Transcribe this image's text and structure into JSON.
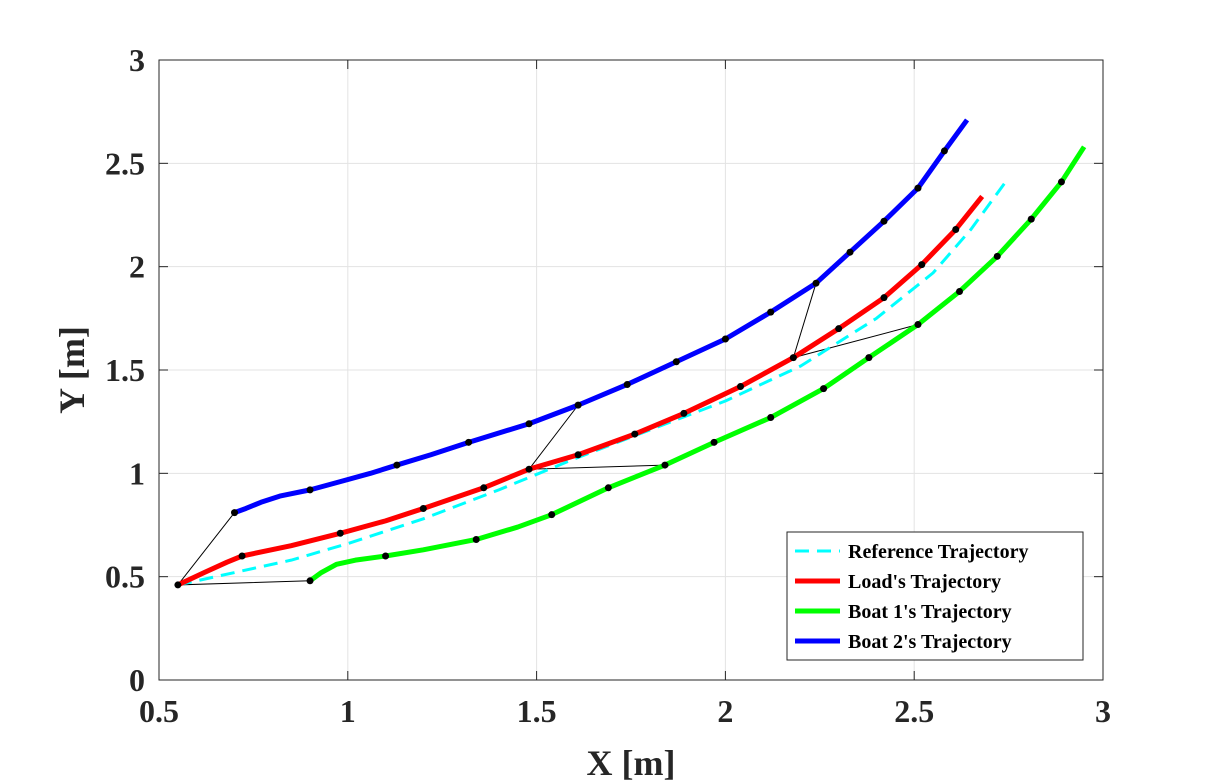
{
  "chart_data": {
    "type": "line",
    "title": "",
    "xlabel": "X [m]",
    "ylabel": "Y [m]",
    "xlim": [
      0.5,
      3
    ],
    "ylim": [
      0,
      3
    ],
    "xticks": [
      "0.5",
      "1",
      "1.5",
      "2",
      "2.5",
      "3"
    ],
    "yticks": [
      "0",
      "0.5",
      "1",
      "1.5",
      "2",
      "2.5",
      "3"
    ],
    "grid": true,
    "legend_position": "bottom-right",
    "series": [
      {
        "name": "Reference Trajectory",
        "color": "#00ffff",
        "style": "dashed",
        "x": [
          0.55,
          0.7,
          0.85,
          1.0,
          1.2,
          1.4,
          1.6,
          1.8,
          2.0,
          2.2,
          2.4,
          2.55,
          2.65,
          2.75
        ],
        "y": [
          0.46,
          0.52,
          0.58,
          0.66,
          0.78,
          0.92,
          1.07,
          1.21,
          1.35,
          1.52,
          1.75,
          1.97,
          2.18,
          2.43
        ]
      },
      {
        "name": "Load's Trajectory",
        "color": "#ff0000",
        "style": "solid",
        "x": [
          0.55,
          0.62,
          0.68,
          0.72,
          0.85,
          0.98,
          1.1,
          1.2,
          1.36,
          1.48,
          1.61,
          1.76,
          1.89,
          2.04,
          2.18,
          2.3,
          2.42,
          2.52,
          2.61,
          2.68
        ],
        "y": [
          0.46,
          0.52,
          0.57,
          0.6,
          0.65,
          0.71,
          0.77,
          0.83,
          0.93,
          1.02,
          1.09,
          1.19,
          1.29,
          1.42,
          1.56,
          1.7,
          1.85,
          2.01,
          2.18,
          2.34
        ]
      },
      {
        "name": "Boat 1's Trajectory",
        "color": "#00ff00",
        "style": "solid",
        "x": [
          0.9,
          0.93,
          0.97,
          1.02,
          1.1,
          1.2,
          1.34,
          1.45,
          1.54,
          1.69,
          1.84,
          1.97,
          2.12,
          2.26,
          2.38,
          2.51,
          2.62,
          2.72,
          2.81,
          2.89,
          2.95
        ],
        "y": [
          0.48,
          0.52,
          0.56,
          0.58,
          0.6,
          0.63,
          0.68,
          0.74,
          0.8,
          0.93,
          1.04,
          1.15,
          1.27,
          1.41,
          1.56,
          1.72,
          1.88,
          2.05,
          2.23,
          2.41,
          2.58
        ]
      },
      {
        "name": "Boat 2's Trajectory",
        "color": "#0000ff",
        "style": "solid",
        "x": [
          0.7,
          0.73,
          0.77,
          0.82,
          0.9,
          0.98,
          1.06,
          1.13,
          1.22,
          1.32,
          1.48,
          1.61,
          1.74,
          1.87,
          2.0,
          2.12,
          2.24,
          2.33,
          2.42,
          2.51,
          2.58,
          2.64
        ],
        "y": [
          0.81,
          0.83,
          0.86,
          0.89,
          0.92,
          0.96,
          1.0,
          1.04,
          1.09,
          1.15,
          1.24,
          1.33,
          1.43,
          1.54,
          1.65,
          1.78,
          1.92,
          2.07,
          2.22,
          2.38,
          2.56,
          2.71
        ]
      }
    ],
    "markers": [
      {
        "series": "Reference Trajectory",
        "x": [],
        "y": []
      },
      {
        "series": "Load's Trajectory",
        "x": [
          0.55,
          0.72,
          0.98,
          1.2,
          1.36,
          1.48,
          1.61,
          1.76,
          1.89,
          2.04,
          2.18,
          2.3,
          2.42,
          2.52,
          2.61
        ],
        "y": [
          0.46,
          0.6,
          0.71,
          0.83,
          0.93,
          1.02,
          1.09,
          1.19,
          1.29,
          1.42,
          1.56,
          1.7,
          1.85,
          2.01,
          2.18
        ]
      },
      {
        "series": "Boat 1's Trajectory",
        "x": [
          0.9,
          1.1,
          1.34,
          1.54,
          1.69,
          1.84,
          1.97,
          2.12,
          2.26,
          2.38,
          2.51,
          2.62,
          2.72,
          2.81,
          2.89
        ],
        "y": [
          0.48,
          0.6,
          0.68,
          0.8,
          0.93,
          1.04,
          1.15,
          1.27,
          1.41,
          1.56,
          1.72,
          1.88,
          2.05,
          2.23,
          2.41
        ]
      },
      {
        "series": "Boat 2's Trajectory",
        "x": [
          0.7,
          0.9,
          1.13,
          1.32,
          1.48,
          1.61,
          1.74,
          1.87,
          2.0,
          2.12,
          2.24,
          2.33,
          2.42,
          2.51,
          2.58
        ],
        "y": [
          0.81,
          0.92,
          1.04,
          1.15,
          1.24,
          1.33,
          1.43,
          1.54,
          1.65,
          1.78,
          1.92,
          2.07,
          2.22,
          2.38,
          2.56
        ]
      }
    ],
    "tethers": [
      {
        "load": [
          0.55,
          0.46
        ],
        "boat1": [
          0.9,
          0.48
        ],
        "boat2": [
          0.7,
          0.81
        ]
      },
      {
        "load": [
          1.48,
          1.02
        ],
        "boat1": [
          1.84,
          1.04
        ],
        "boat2": [
          1.61,
          1.33
        ]
      },
      {
        "load": [
          2.18,
          1.56
        ],
        "boat1": [
          2.51,
          1.72
        ],
        "boat2": [
          2.24,
          1.92
        ]
      }
    ]
  }
}
